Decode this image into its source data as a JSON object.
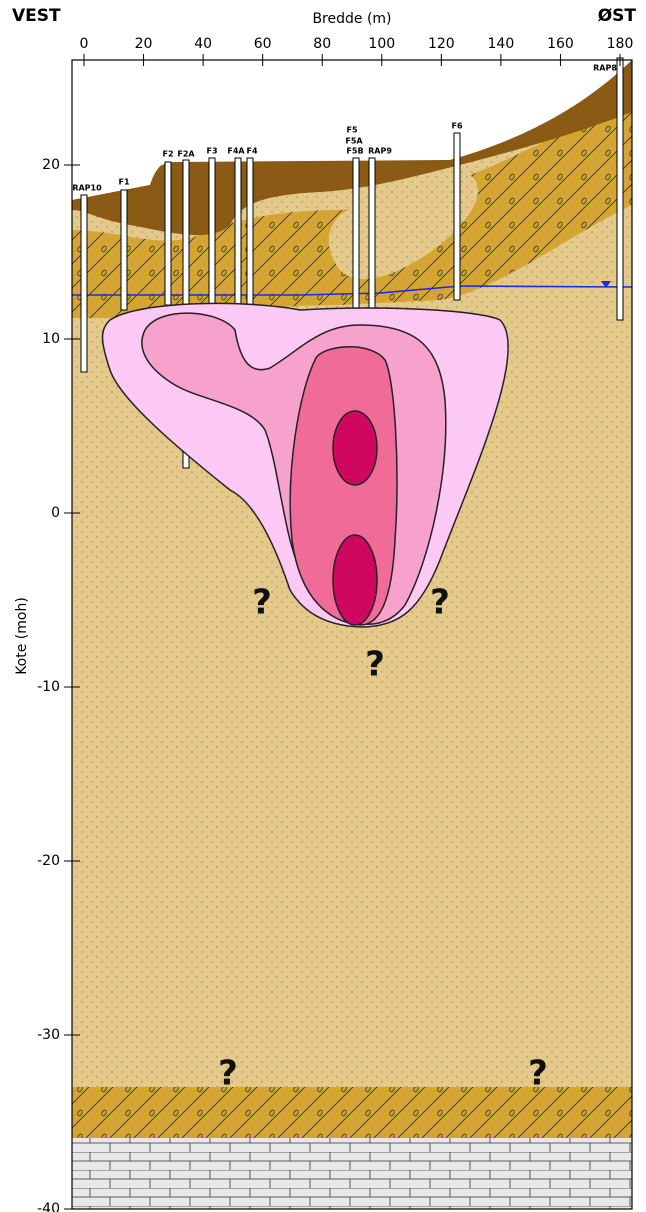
{
  "header": {
    "left": "VEST",
    "right": "ØST",
    "x_label": "Bredde (m)",
    "y_label": "Kote (moh)"
  },
  "axes": {
    "xticks": [
      0,
      20,
      40,
      60,
      80,
      100,
      120,
      140,
      160,
      180
    ],
    "yticks": [
      -40,
      -30,
      -20,
      -10,
      0,
      10,
      20
    ]
  },
  "boreholes": [
    "RAP10",
    "F1",
    "F2",
    "F2A",
    "F3",
    "F4A",
    "F4",
    "F5",
    "F5A",
    "F5B",
    "RAP9",
    "F6",
    "RAP8"
  ],
  "annotations": [
    "?",
    "?",
    "?",
    "?",
    "?"
  ]
}
